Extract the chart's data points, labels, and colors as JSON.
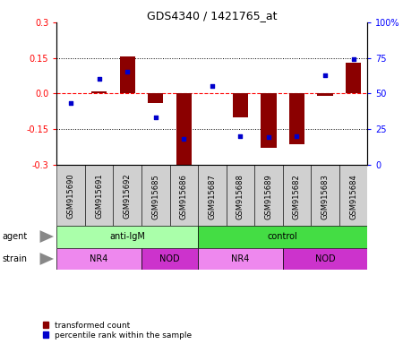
{
  "title": "GDS4340 / 1421765_at",
  "samples": [
    "GSM915690",
    "GSM915691",
    "GSM915692",
    "GSM915685",
    "GSM915686",
    "GSM915687",
    "GSM915688",
    "GSM915689",
    "GSM915682",
    "GSM915683",
    "GSM915684"
  ],
  "transformed_count": [
    0.0,
    0.01,
    0.155,
    -0.04,
    -0.305,
    0.0,
    -0.1,
    -0.23,
    -0.215,
    -0.01,
    0.13
  ],
  "percentile_rank": [
    43,
    60,
    65,
    33,
    18,
    55,
    20,
    19,
    20,
    63,
    74
  ],
  "ylim": [
    -0.3,
    0.3
  ],
  "yticks_left": [
    -0.3,
    -0.15,
    0.0,
    0.15,
    0.3
  ],
  "yticks_right": [
    0,
    25,
    50,
    75,
    100
  ],
  "hlines_dotted": [
    -0.15,
    0.15
  ],
  "hline_dashed": 0.0,
  "agent_groups": [
    {
      "label": "anti-IgM",
      "start": 0,
      "end": 5,
      "color": "#aaffaa"
    },
    {
      "label": "control",
      "start": 5,
      "end": 11,
      "color": "#44dd44"
    }
  ],
  "strain_groups": [
    {
      "label": "NR4",
      "start": 0,
      "end": 3,
      "color": "#ee88ee"
    },
    {
      "label": "NOD",
      "start": 3,
      "end": 5,
      "color": "#cc33cc"
    },
    {
      "label": "NR4",
      "start": 5,
      "end": 8,
      "color": "#ee88ee"
    },
    {
      "label": "NOD",
      "start": 8,
      "end": 11,
      "color": "#cc33cc"
    }
  ],
  "bar_color": "#8B0000",
  "dot_color": "#0000cc",
  "bar_width": 0.55,
  "sample_box_color": "#d0d0d0",
  "legend_items": [
    {
      "label": "transformed count",
      "color": "#8B0000"
    },
    {
      "label": "percentile rank within the sample",
      "color": "#0000cc"
    }
  ],
  "label_fontsize": 7,
  "tick_fontsize": 7,
  "sample_fontsize": 6
}
